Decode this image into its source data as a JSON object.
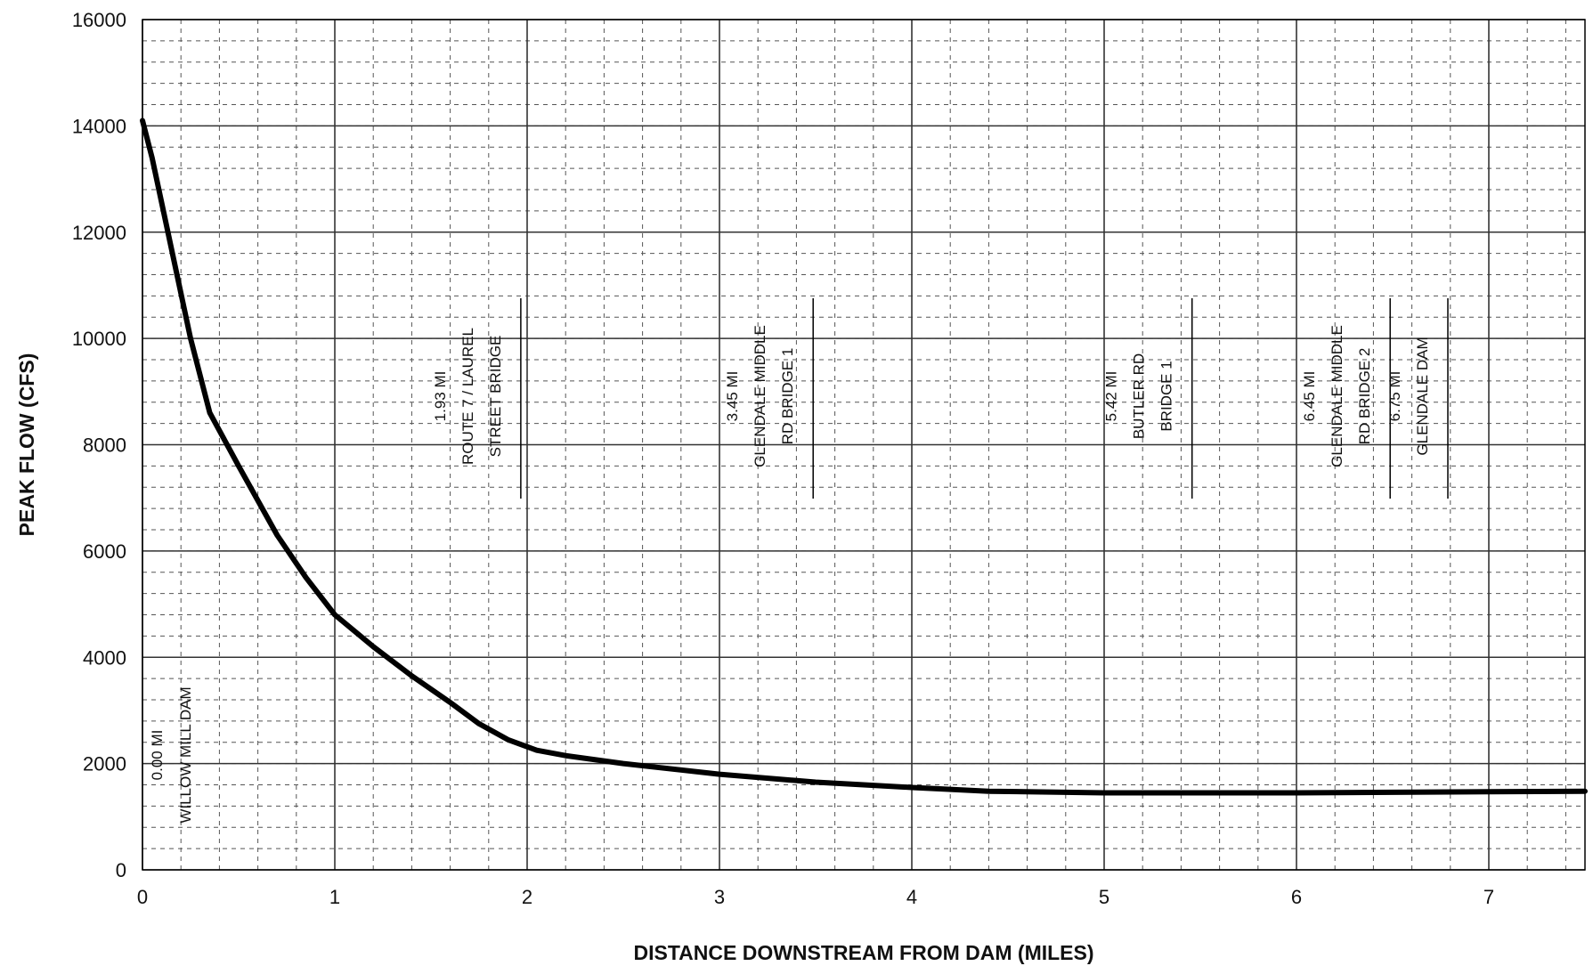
{
  "chart_data": {
    "type": "line",
    "title": "",
    "xlabel": "DISTANCE DOWNSTREAM FROM DAM (MILES)",
    "ylabel": "PEAK FLOW (CFS)",
    "xlim": [
      0,
      7.5
    ],
    "ylim": [
      0,
      16000
    ],
    "xticks": [
      0,
      1,
      2,
      3,
      4,
      5,
      6,
      7
    ],
    "yticks": [
      0,
      2000,
      4000,
      6000,
      8000,
      10000,
      12000,
      14000,
      16000
    ],
    "xtick_labels": [
      "0",
      "1",
      "2",
      "3",
      "4",
      "5",
      "6",
      "7"
    ],
    "ytick_labels": [
      "0",
      "2000",
      "4000",
      "6000",
      "8000",
      "10000",
      "12000",
      "14000",
      "16000"
    ],
    "grid": true,
    "legend": "none",
    "line_color": "#000000",
    "series": [
      {
        "x": [
          0,
          0.05,
          0.15,
          0.25,
          0.35,
          0.5,
          0.7,
          0.85,
          1.0,
          1.2,
          1.4,
          1.6,
          1.75,
          1.9,
          2.05,
          2.2,
          2.5,
          3.0,
          3.5,
          4.0,
          4.4,
          5.0,
          5.5,
          6.0,
          6.5,
          7.0,
          7.5
        ],
        "y": [
          14100,
          13400,
          11700,
          10000,
          8600,
          7600,
          6300,
          5500,
          4800,
          4200,
          3650,
          3150,
          2750,
          2450,
          2250,
          2150,
          2000,
          1800,
          1650,
          1550,
          1480,
          1450,
          1450,
          1450,
          1460,
          1470,
          1480
        ]
      }
    ],
    "annotations": [
      {
        "x": 0.0,
        "lines": [
          "0.00 MI",
          "WILLOW MILL DAM"
        ],
        "marker": false
      },
      {
        "x": 1.93,
        "lines": [
          "1.93 MI",
          "ROUTE 7 / LAUREL",
          "STREET BRIDGE"
        ],
        "marker": true
      },
      {
        "x": 3.45,
        "lines": [
          "3.45 MI",
          "GLENDALE MIDDLE",
          "RD BRIDGE 1"
        ],
        "marker": true
      },
      {
        "x": 5.42,
        "lines": [
          "5.42 MI",
          "BUTLER RD",
          "BRIDGE 1"
        ],
        "marker": true
      },
      {
        "x": 6.45,
        "lines": [
          "6.45 MI",
          "GLENDALE MIDDLE",
          "RD BRIDGE 2"
        ],
        "marker": true
      },
      {
        "x": 6.75,
        "lines": [
          "6.75 MI",
          "GLENDALE DAM"
        ],
        "marker": true
      }
    ]
  }
}
